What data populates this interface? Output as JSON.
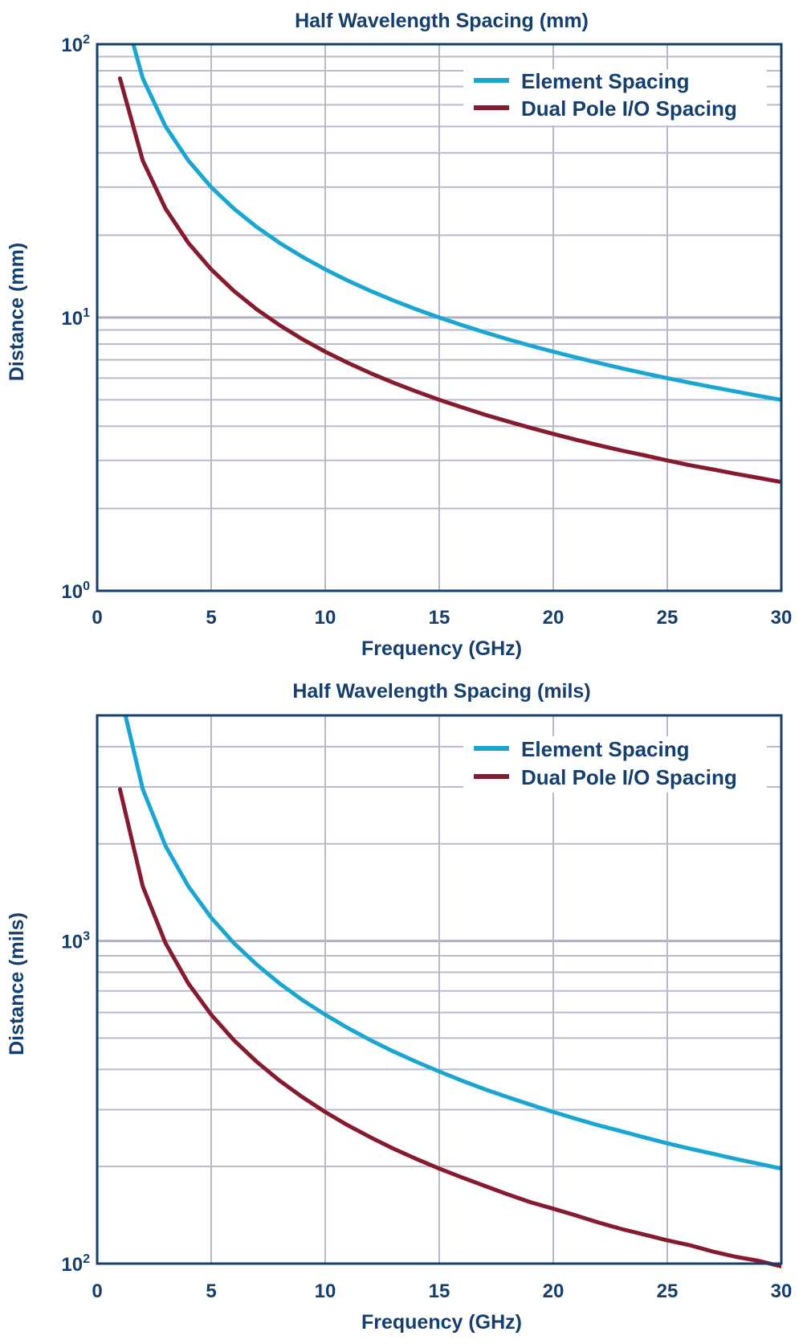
{
  "chart_data": [
    {
      "type": "line",
      "title": "Half Wavelength Spacing (mm)",
      "xlabel": "Frequency (GHz)",
      "ylabel": "Distance (mm)",
      "xlim": [
        0,
        30
      ],
      "ylim": [
        1,
        100
      ],
      "yscale": "log",
      "grid": true,
      "legend_position": "top-right",
      "xticks": [
        "0",
        "5",
        "10",
        "15",
        "20",
        "25",
        "30"
      ],
      "yticks": [
        {
          "base": "10",
          "exp": "0",
          "value": 1
        },
        {
          "base": "10",
          "exp": "1",
          "value": 10
        },
        {
          "base": "10",
          "exp": "2",
          "value": 100
        }
      ],
      "x": [
        1,
        2,
        3,
        4,
        5,
        6,
        7,
        8,
        9,
        10,
        11,
        12,
        13,
        14,
        15,
        16,
        17,
        18,
        19,
        20,
        21,
        22,
        23,
        24,
        25,
        26,
        27,
        28,
        29,
        30
      ],
      "series": [
        {
          "name": "Element Spacing",
          "color": "#1aa6d3",
          "values": [
            150,
            75,
            50,
            37.5,
            30,
            25,
            21.43,
            18.75,
            16.67,
            15,
            13.64,
            12.5,
            11.54,
            10.71,
            10,
            9.38,
            8.82,
            8.33,
            7.89,
            7.5,
            7.14,
            6.82,
            6.52,
            6.25,
            6,
            5.77,
            5.56,
            5.36,
            5.17,
            5
          ]
        },
        {
          "name": "Dual Pole I/O Spacing",
          "color": "#861a2f",
          "values": [
            75,
            37.5,
            25,
            18.75,
            15,
            12.5,
            10.71,
            9.38,
            8.33,
            7.5,
            6.82,
            6.25,
            5.77,
            5.36,
            5,
            4.69,
            4.41,
            4.17,
            3.95,
            3.75,
            3.57,
            3.41,
            3.26,
            3.13,
            3,
            2.88,
            2.78,
            2.68,
            2.59,
            2.5
          ]
        }
      ]
    },
    {
      "type": "line",
      "title": "Half Wavelength Spacing (mils)",
      "xlabel": "Frequency (GHz)",
      "ylabel": "Distance (mils)",
      "xlim": [
        0,
        30
      ],
      "ylim": [
        100,
        5000
      ],
      "yscale": "log",
      "grid": true,
      "legend_position": "top-right",
      "xticks": [
        "0",
        "5",
        "10",
        "15",
        "20",
        "25",
        "30"
      ],
      "yticks": [
        {
          "base": "10",
          "exp": "2",
          "value": 100
        },
        {
          "base": "10",
          "exp": "3",
          "value": 1000
        }
      ],
      "x": [
        1,
        2,
        3,
        4,
        5,
        6,
        7,
        8,
        9,
        10,
        11,
        12,
        13,
        14,
        15,
        16,
        17,
        18,
        19,
        20,
        21,
        22,
        23,
        24,
        25,
        26,
        27,
        28,
        29,
        30
      ],
      "series": [
        {
          "name": "Element Spacing",
          "color": "#1aa6d3",
          "values": [
            5906,
            2953,
            1969,
            1476,
            1181,
            984,
            844,
            738,
            656,
            591,
            537,
            492,
            454,
            422,
            394,
            369,
            347,
            328,
            311,
            295,
            281,
            268,
            257,
            246,
            236,
            227,
            219,
            211,
            204,
            197
          ]
        },
        {
          "name": "Dual Pole I/O Spacing",
          "color": "#861a2f",
          "values": [
            2953,
            1476,
            984,
            738,
            591,
            492,
            422,
            369,
            328,
            295,
            268,
            246,
            227,
            211,
            197,
            185,
            174,
            164,
            155,
            148,
            141,
            134,
            128,
            123,
            118,
            114,
            109,
            105,
            102,
            98
          ]
        }
      ]
    }
  ]
}
